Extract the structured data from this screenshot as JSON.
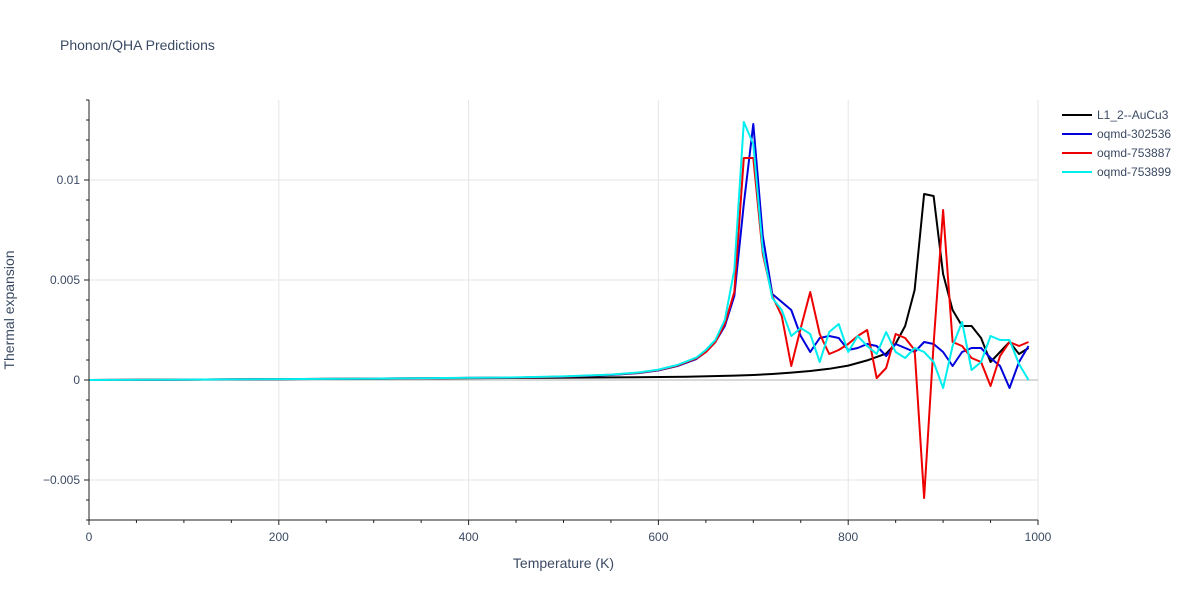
{
  "chart_data": {
    "type": "line",
    "title": "Phonon/QHA Predictions",
    "xlabel": "Temperature (K)",
    "ylabel": "Thermal expansion",
    "xlim": [
      0,
      1000
    ],
    "ylim": [
      -0.007,
      0.014
    ],
    "grid": true,
    "legend_position": "top-right outside",
    "x_ticks": [
      0,
      200,
      400,
      600,
      800,
      1000
    ],
    "x_tick_labels": [
      "0",
      "200",
      "400",
      "600",
      "800",
      "1000"
    ],
    "y_ticks": [
      -0.005,
      0,
      0.005,
      0.01
    ],
    "y_tick_labels": [
      "−0.005",
      "0",
      "0.005",
      "0.01"
    ],
    "series": [
      {
        "name": "L1_2--AuCu3",
        "color": "#000000",
        "x": [
          0,
          150,
          300,
          450,
          550,
          630,
          680,
          700,
          720,
          740,
          760,
          780,
          800,
          820,
          840,
          850,
          860,
          870,
          880,
          890,
          900,
          910,
          920,
          930,
          940,
          950,
          960,
          970,
          980,
          990
        ],
        "y": [
          0,
          3e-05,
          6e-05,
          0.0001,
          0.00013,
          0.00016,
          0.00022,
          0.00025,
          0.0003,
          0.00037,
          0.00045,
          0.00056,
          0.00072,
          0.00098,
          0.00132,
          0.00182,
          0.0027,
          0.0045,
          0.0093,
          0.0092,
          0.0053,
          0.0035,
          0.0027,
          0.0027,
          0.0021,
          0.0009,
          0.0014,
          0.0019,
          0.0013,
          0.0016
        ]
      },
      {
        "name": "oqmd-302536",
        "color": "#0000dd",
        "x": [
          0,
          150,
          300,
          450,
          500,
          550,
          580,
          600,
          620,
          640,
          650,
          660,
          670,
          680,
          690,
          700,
          710,
          720,
          730,
          740,
          750,
          760,
          770,
          780,
          790,
          800,
          810,
          820,
          830,
          840,
          850,
          860,
          870,
          880,
          890,
          900,
          910,
          920,
          930,
          940,
          950,
          960,
          970,
          980,
          990
        ],
        "y": [
          0,
          3e-05,
          7e-05,
          0.00012,
          0.00016,
          0.00025,
          0.00035,
          0.00048,
          0.0007,
          0.00105,
          0.0014,
          0.0019,
          0.0027,
          0.0042,
          0.0088,
          0.0128,
          0.0072,
          0.0043,
          0.0039,
          0.0035,
          0.0022,
          0.0014,
          0.0021,
          0.0022,
          0.0021,
          0.0015,
          0.0016,
          0.0018,
          0.0017,
          0.0012,
          0.0018,
          0.0016,
          0.0014,
          0.0019,
          0.0018,
          0.0014,
          0.0007,
          0.0014,
          0.0016,
          0.0016,
          0.0011,
          0.0007,
          -0.0004,
          0.0009,
          0.0017
        ]
      },
      {
        "name": "oqmd-753887",
        "color": "#ee0000",
        "x": [
          0,
          150,
          300,
          450,
          500,
          550,
          580,
          600,
          620,
          640,
          650,
          660,
          670,
          680,
          690,
          700,
          710,
          720,
          730,
          740,
          750,
          760,
          770,
          780,
          790,
          800,
          810,
          820,
          830,
          840,
          850,
          860,
          870,
          880,
          890,
          900,
          910,
          920,
          930,
          940,
          950,
          960,
          970,
          980,
          990
        ],
        "y": [
          0,
          3e-05,
          7e-05,
          0.00012,
          0.00017,
          0.00026,
          0.00036,
          0.0005,
          0.00072,
          0.00108,
          0.0014,
          0.0019,
          0.0028,
          0.0044,
          0.0111,
          0.0111,
          0.0063,
          0.0042,
          0.0032,
          0.0007,
          0.0026,
          0.0044,
          0.0023,
          0.0013,
          0.0015,
          0.0018,
          0.0022,
          0.0025,
          0.0001,
          0.0006,
          0.0023,
          0.0021,
          0.0015,
          -0.0059,
          0.0018,
          0.0085,
          0.0019,
          0.0017,
          0.0011,
          0.0009,
          -0.0003,
          0.0012,
          0.0019,
          0.0017,
          0.0019
        ]
      },
      {
        "name": "oqmd-753899",
        "color": "#00eeee",
        "x": [
          0,
          150,
          300,
          450,
          500,
          550,
          580,
          600,
          620,
          640,
          650,
          660,
          670,
          680,
          690,
          700,
          710,
          720,
          730,
          740,
          750,
          760,
          770,
          780,
          790,
          800,
          810,
          820,
          830,
          840,
          850,
          860,
          870,
          880,
          890,
          900,
          910,
          920,
          930,
          940,
          950,
          960,
          970,
          980,
          990
        ],
        "y": [
          0,
          3e-05,
          7e-05,
          0.00013,
          0.00018,
          0.00027,
          0.00038,
          0.00052,
          0.00075,
          0.00112,
          0.0015,
          0.002,
          0.003,
          0.0055,
          0.0129,
          0.0118,
          0.0065,
          0.0041,
          0.0035,
          0.0022,
          0.0026,
          0.0023,
          0.0009,
          0.0024,
          0.0028,
          0.0014,
          0.0022,
          0.0017,
          0.0013,
          0.0024,
          0.0014,
          0.0011,
          0.0016,
          0.0014,
          0.0009,
          -0.0004,
          0.0017,
          0.0029,
          0.0005,
          0.0009,
          0.0022,
          0.002,
          0.002,
          0.0008,
          0
        ]
      }
    ]
  }
}
